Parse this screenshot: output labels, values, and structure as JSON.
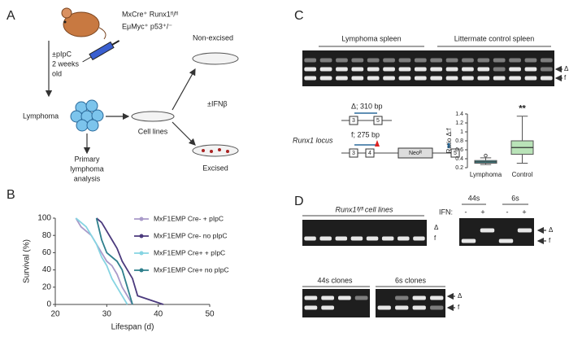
{
  "panel_a": {
    "letter": "A",
    "genotype": [
      "MxCre⁺ Runx1ᶠˡ/ᶠˡ",
      "EμMyc⁺ p53⁺/⁻"
    ],
    "treatment": [
      "±pIpC",
      "2 weeks",
      "old"
    ],
    "lymphoma": "Lymphoma",
    "cell_lines": "Cell lines",
    "non_excised": "Non-excised",
    "ifn": "±IFNβ",
    "excised": "Excised",
    "analysis": [
      "Primary",
      "lymphoma",
      "analysis"
    ]
  },
  "panel_b": {
    "letter": "B"
  },
  "panel_c": {
    "letter": "C",
    "groups": [
      "Lymphoma spleen",
      "Littermate control spleen"
    ],
    "band_labels": [
      "Δ",
      "f"
    ],
    "locus": "Runx1 locus",
    "excised_allele": "Δ; 310 bp",
    "floxed_allele": "f; 275 bp",
    "exons_excised": [
      "3",
      "5"
    ],
    "exons_floxed": [
      "3",
      "4",
      "5"
    ],
    "neo": "Neoᴿ"
  },
  "panel_d": {
    "letter": "D",
    "cell_lines": "Runx1ᶠˡ/ᶠˡ cell lines",
    "cell_lines_bands": [
      "Δ",
      "f"
    ],
    "ifn_lines": [
      "44s",
      "6s"
    ],
    "ifn_label": "IFN:",
    "ifn_states": [
      "-",
      "+",
      "-",
      "+"
    ],
    "ifn_bands": [
      "Δ",
      "f"
    ],
    "clones": [
      "44s clones",
      "6s clones"
    ],
    "clones_bands": [
      "Δ",
      "f"
    ]
  },
  "chart_data": [
    {
      "type": "line",
      "y_label": "Survival (%)",
      "x_label": "Lifespan (d)",
      "xlim": [
        20,
        50
      ],
      "xticks": [
        20,
        30,
        40,
        50
      ],
      "ylim": [
        0,
        100
      ],
      "yticks": [
        0,
        20,
        40,
        60,
        80,
        100
      ],
      "series": [
        {
          "name": "MxF1EMP Cre- + pIpC",
          "color": "#a99ac9",
          "x": [
            24,
            25,
            26,
            27,
            28,
            29,
            30,
            31,
            32,
            33,
            34,
            35
          ],
          "values": [
            100,
            90,
            85,
            80,
            70,
            60,
            50,
            45,
            35,
            20,
            10,
            0
          ]
        },
        {
          "name": "MxF1EMP Cre- no pIpC",
          "color": "#4b3a7d",
          "x": [
            28,
            29,
            30,
            31,
            32,
            33,
            34,
            35,
            36,
            41
          ],
          "values": [
            100,
            95,
            85,
            75,
            65,
            50,
            40,
            30,
            10,
            0
          ]
        },
        {
          "name": "MxF1EMP Cre+ + pIpC",
          "color": "#86d4e2",
          "x": [
            24,
            26,
            27,
            28,
            29,
            30,
            31,
            32,
            33,
            34
          ],
          "values": [
            100,
            90,
            80,
            70,
            55,
            45,
            30,
            20,
            10,
            0
          ]
        },
        {
          "name": "MxF1EMP Cre+ no pIpC",
          "color": "#2e7f8c",
          "x": [
            28,
            29,
            30,
            32,
            33,
            34,
            35
          ],
          "values": [
            100,
            75,
            60,
            50,
            40,
            20,
            0
          ]
        }
      ]
    },
    {
      "type": "box",
      "y_label": "Ratio Δ:f",
      "annotation": "**",
      "categories": [
        "Lymphoma",
        "Control"
      ],
      "colors": [
        "#4fb8c0",
        "#b9e3b8"
      ],
      "ylim": [
        0.2,
        1.4
      ],
      "yticks": [
        0.2,
        0.4,
        0.6,
        0.8,
        1,
        1.2,
        1.4
      ],
      "boxes": [
        {
          "min": 0.27,
          "q1": 0.3,
          "median": 0.33,
          "q3": 0.36,
          "max": 0.42,
          "outliers": [
            0.47
          ]
        },
        {
          "min": 0.3,
          "q1": 0.5,
          "median": 0.65,
          "q3": 0.8,
          "max": 1.35,
          "outliers": []
        }
      ]
    }
  ]
}
